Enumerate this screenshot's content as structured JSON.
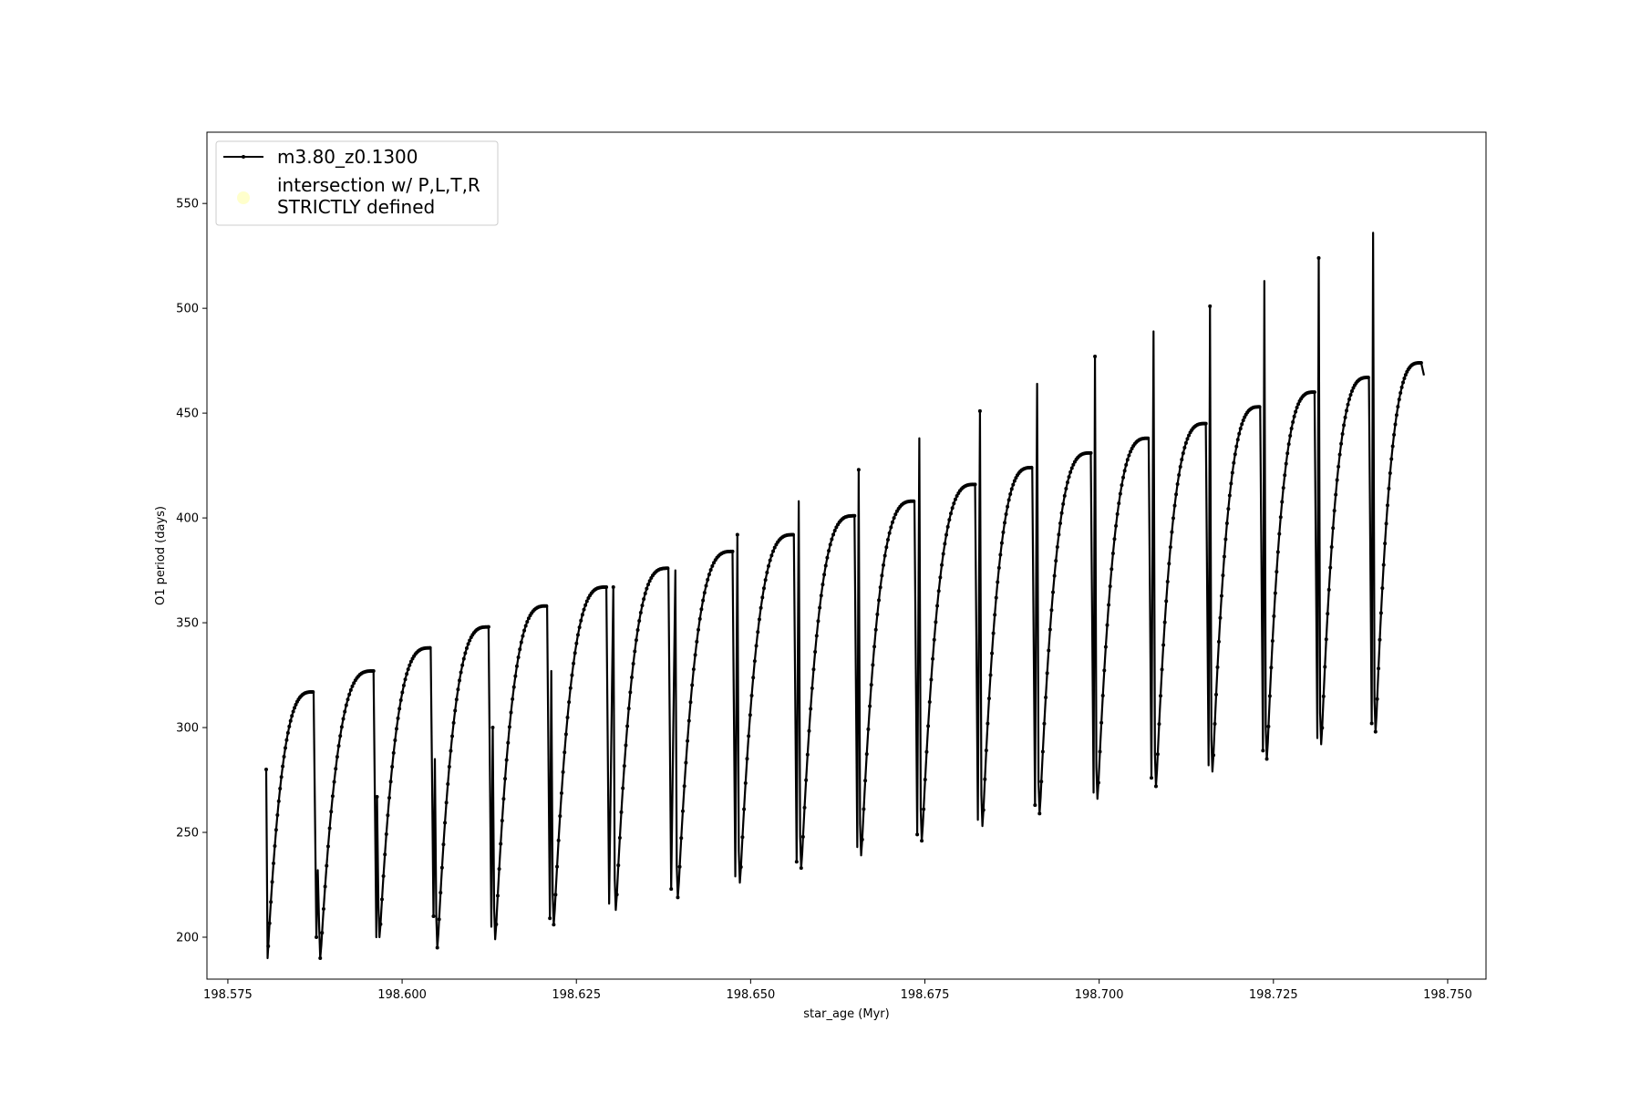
{
  "chart_data": {
    "type": "line",
    "title": "",
    "xlabel": "star_age (Myr)",
    "ylabel": "O1 period (days)",
    "xlim": [
      198.572,
      198.7555
    ],
    "ylim": [
      180,
      584
    ],
    "x_ticks": [
      198.575,
      198.6,
      198.625,
      198.65,
      198.675,
      198.7,
      198.725,
      198.75
    ],
    "x_tick_labels": [
      "198.575",
      "198.600",
      "198.625",
      "198.650",
      "198.675",
      "198.700",
      "198.725",
      "198.750"
    ],
    "y_ticks": [
      200,
      250,
      300,
      350,
      400,
      450,
      500,
      550
    ],
    "y_tick_labels": [
      "200",
      "250",
      "300",
      "350",
      "400",
      "450",
      "500",
      "550"
    ],
    "grid": false,
    "legend": {
      "placement": "top-left",
      "entries": [
        {
          "label": "m3.80_z0.1300",
          "style": "line-with-markers",
          "color": "#000000"
        },
        {
          "label_lines": [
            "intersection w/ P,L,T,R",
            "STRICTLY defined"
          ],
          "style": "marker",
          "color": "#ffffcc"
        }
      ]
    },
    "series": [
      {
        "name": "m3.80_z0.1300",
        "color": "#000000",
        "marker": "dot",
        "cycles": [
          {
            "start": 198.5805,
            "end": 198.5877,
            "min": 190,
            "max": 317,
            "spike": 280
          },
          {
            "start": 198.5881,
            "end": 198.5963,
            "min": 190,
            "max": 327,
            "spike": 232
          },
          {
            "start": 198.5966,
            "end": 198.6045,
            "min": 200,
            "max": 338,
            "spike": 267
          },
          {
            "start": 198.6049,
            "end": 198.6128,
            "min": 195,
            "max": 348,
            "spike": 285
          },
          {
            "start": 198.6132,
            "end": 198.6212,
            "min": 199,
            "max": 358,
            "spike": 300
          },
          {
            "start": 198.6216,
            "end": 198.6297,
            "min": 206,
            "max": 367,
            "spike": 327
          },
          {
            "start": 198.6305,
            "end": 198.6386,
            "min": 213,
            "max": 376,
            "spike": 367
          },
          {
            "start": 198.6394,
            "end": 198.6478,
            "min": 219,
            "max": 384,
            "spike": 375
          },
          {
            "start": 198.6483,
            "end": 198.6566,
            "min": 226,
            "max": 392,
            "spike": 392
          },
          {
            "start": 198.6571,
            "end": 198.6653,
            "min": 233,
            "max": 401,
            "spike": 408
          },
          {
            "start": 198.6657,
            "end": 198.6739,
            "min": 239,
            "max": 408,
            "spike": 423
          },
          {
            "start": 198.6744,
            "end": 198.6826,
            "min": 246,
            "max": 416,
            "spike": 438
          },
          {
            "start": 198.6831,
            "end": 198.6908,
            "min": 253,
            "max": 424,
            "spike": 451
          },
          {
            "start": 198.6913,
            "end": 198.6992,
            "min": 259,
            "max": 431,
            "spike": 464
          },
          {
            "start": 198.6996,
            "end": 198.7075,
            "min": 266,
            "max": 438,
            "spike": 477
          },
          {
            "start": 198.708,
            "end": 198.7157,
            "min": 272,
            "max": 445,
            "spike": 489
          },
          {
            "start": 198.7161,
            "end": 198.7235,
            "min": 279,
            "max": 453,
            "spike": 501
          },
          {
            "start": 198.7239,
            "end": 198.7313,
            "min": 285,
            "max": 460,
            "spike": 513
          },
          {
            "start": 198.7317,
            "end": 198.7391,
            "min": 292,
            "max": 467,
            "spike": 524
          },
          {
            "start": 198.7395,
            "end": 198.7466,
            "min": 298,
            "max": 474,
            "spike": 536
          }
        ],
        "final_value": 468
      }
    ]
  }
}
